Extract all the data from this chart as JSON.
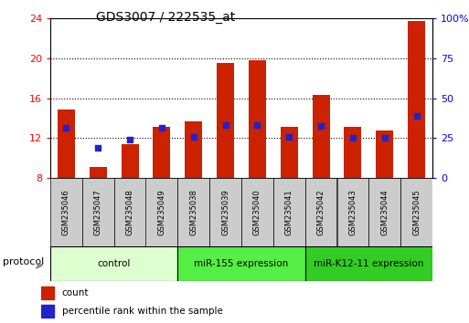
{
  "title": "GDS3007 / 222535_at",
  "samples": [
    "GSM235046",
    "GSM235047",
    "GSM235048",
    "GSM235049",
    "GSM235038",
    "GSM235039",
    "GSM235040",
    "GSM235041",
    "GSM235042",
    "GSM235043",
    "GSM235044",
    "GSM235045"
  ],
  "count_values": [
    14.9,
    9.1,
    11.4,
    13.1,
    13.7,
    19.5,
    19.8,
    13.1,
    16.3,
    13.1,
    12.8,
    23.7
  ],
  "percentile_values": [
    13.0,
    11.0,
    11.8,
    13.0,
    12.1,
    13.3,
    13.3,
    12.1,
    13.2,
    12.0,
    12.0,
    14.2
  ],
  "ylim_left": [
    8,
    24
  ],
  "yticks_left": [
    8,
    12,
    16,
    20,
    24
  ],
  "bar_color": "#cc2200",
  "dot_color": "#2222cc",
  "groups": [
    {
      "label": "control",
      "start": 0,
      "end": 4,
      "color": "#ddffd0"
    },
    {
      "label": "miR-155 expression",
      "start": 4,
      "end": 8,
      "color": "#55ee44"
    },
    {
      "label": "miR-K12-11 expression",
      "start": 8,
      "end": 12,
      "color": "#33cc22"
    }
  ],
  "protocol_label": "protocol",
  "legend_count": "count",
  "legend_percentile": "percentile rank within the sample",
  "bar_bottom": 8,
  "sample_box_color": "#cccccc",
  "bar_width": 0.55
}
